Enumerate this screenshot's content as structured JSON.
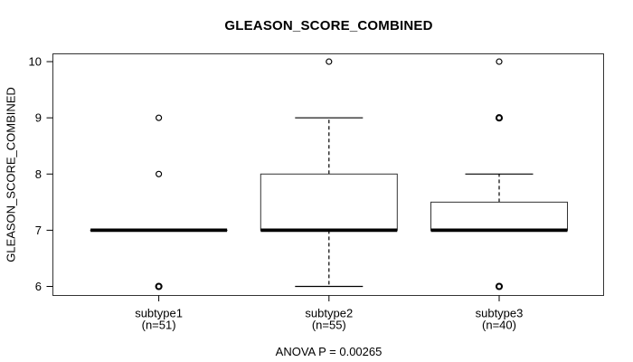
{
  "chart_data": {
    "type": "boxplot",
    "title": "GLEASON_SCORE_COMBINED",
    "ylabel": "GLEASON_SCORE_COMBINED",
    "xlabel": "",
    "annotation": "ANOVA P = 0.00265",
    "ylim": [
      6,
      10
    ],
    "yticks": [
      6,
      7,
      8,
      9,
      10
    ],
    "grid": false,
    "legend": false,
    "colors": {
      "background": "#ffffff",
      "line": "#000000",
      "box_fill": "#ffffff"
    },
    "groups": [
      {
        "label": "subtype1",
        "sublabel": "(n=51)",
        "n": 51,
        "whisker_low": 7,
        "q1": 7,
        "median": 7,
        "q3": 7,
        "whisker_high": 7,
        "outliers": [
          {
            "value": 9,
            "bold": false
          },
          {
            "value": 8,
            "bold": false
          },
          {
            "value": 6,
            "bold": true
          }
        ]
      },
      {
        "label": "subtype2",
        "sublabel": "(n=55)",
        "n": 55,
        "whisker_low": 6,
        "q1": 7,
        "median": 7,
        "q3": 8,
        "whisker_high": 9,
        "outliers": [
          {
            "value": 10,
            "bold": false
          }
        ]
      },
      {
        "label": "subtype3",
        "sublabel": "(n=40)",
        "n": 40,
        "whisker_low": 7,
        "q1": 7,
        "median": 7,
        "q3": 7.5,
        "whisker_high": 8,
        "outliers": [
          {
            "value": 10,
            "bold": false
          },
          {
            "value": 9,
            "bold": true
          },
          {
            "value": 6,
            "bold": true
          }
        ]
      }
    ]
  }
}
